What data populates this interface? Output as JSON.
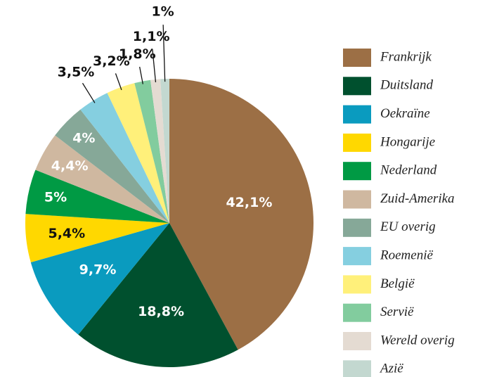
{
  "chart_data": {
    "type": "pie",
    "categories": [
      "Frankrijk",
      "Duitsland",
      "Oekraïne",
      "Hongarije",
      "Nederland",
      "Zuid-Amerika",
      "EU overig",
      "Roemenië",
      "België",
      "Servië",
      "Wereld overig",
      "Azië"
    ],
    "values": [
      42.1,
      18.8,
      9.7,
      5.4,
      5,
      4.4,
      4,
      3.5,
      3.2,
      1.8,
      1.1,
      1
    ],
    "value_labels": [
      "42,1%",
      "18,8%",
      "9,7%",
      "5,4%",
      "5%",
      "4,4%",
      "4%",
      "3,5%",
      "3,2%",
      "1,8%",
      "1,1%",
      "1%"
    ],
    "colors": [
      "#9c6f45",
      "#00502e",
      "#0a9bbf",
      "#ffd800",
      "#009a44",
      "#cfb8a0",
      "#86a898",
      "#85cfe0",
      "#fff07a",
      "#82cc9e",
      "#e4dbd2",
      "#c3d8d0"
    ],
    "label_colors": [
      "#ffffff",
      "#ffffff",
      "#ffffff",
      "#111111",
      "#ffffff",
      "#ffffff",
      "#ffffff",
      "#111111",
      "#111111",
      "#111111",
      "#111111",
      "#111111"
    ],
    "legend": "right"
  }
}
